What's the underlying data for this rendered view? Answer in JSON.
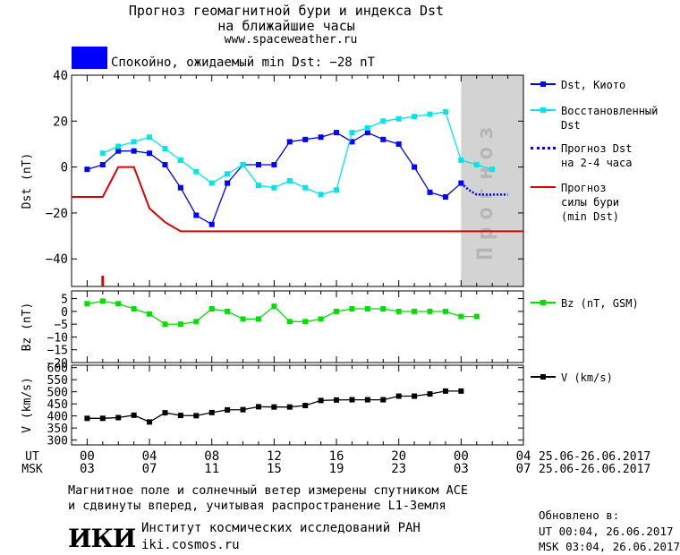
{
  "header": {
    "title_line1": "Прогноз геомагнитной бури и индекса Dst",
    "title_line2": "на ближайшие часы",
    "site": "www.spaceweather.ru"
  },
  "status": {
    "text": "Спокойно, ожидаемый min Dst: −28 nT",
    "color": "#0000ff"
  },
  "legend": {
    "dst_kyoto": "Dst, Киото",
    "dst_restored": "Восстановленный\nDst",
    "dst_forecast": "Прогноз Dst\nна 2-4 часа",
    "storm_forecast": "Прогноз\nсилы бури\n(min Dst)",
    "bz": "Bz (nT, GSM)",
    "v": "V (km/s)"
  },
  "chart_data": [
    {
      "type": "line",
      "ylabel": "Dst (nT)",
      "ylim": [
        -52,
        40
      ],
      "yticks": [
        40,
        20,
        0,
        -20,
        -40
      ],
      "x": [
        0,
        1,
        2,
        3,
        4,
        5,
        6,
        7,
        8,
        9,
        10,
        11,
        12,
        13,
        14,
        15,
        16,
        17,
        18,
        19,
        20,
        21,
        22,
        23,
        24,
        25
      ],
      "series": [
        {
          "name": "Dst, Киото",
          "color": "#0000ff",
          "points": [
            [
              0,
              -1
            ],
            [
              1,
              1
            ],
            [
              2,
              7
            ],
            [
              3,
              7
            ],
            [
              4,
              6
            ],
            [
              5,
              1
            ],
            [
              6,
              -9
            ],
            [
              7,
              -21
            ],
            [
              8,
              -25
            ],
            [
              9,
              -7
            ],
            [
              10,
              1
            ],
            [
              11,
              1
            ],
            [
              12,
              1
            ],
            [
              13,
              11
            ],
            [
              14,
              12
            ],
            [
              15,
              13
            ],
            [
              16,
              15
            ],
            [
              17,
              11
            ],
            [
              18,
              15
            ],
            [
              19,
              12
            ],
            [
              20,
              10
            ],
            [
              21,
              0
            ],
            [
              22,
              -11
            ],
            [
              23,
              -13
            ],
            [
              24,
              -7
            ]
          ]
        },
        {
          "name": "Восстановленный Dst",
          "color": "#00e5e5",
          "points": [
            [
              1,
              6
            ],
            [
              2,
              9
            ],
            [
              3,
              11
            ],
            [
              4,
              13
            ],
            [
              5,
              8
            ],
            [
              6,
              3
            ],
            [
              7,
              -2
            ],
            [
              8,
              -7
            ],
            [
              9,
              -3
            ],
            [
              10,
              1
            ],
            [
              11,
              -8
            ],
            [
              12,
              -9
            ],
            [
              13,
              -6
            ],
            [
              14,
              -9
            ],
            [
              15,
              -12
            ],
            [
              16,
              -10
            ],
            [
              17,
              15
            ],
            [
              18,
              17
            ],
            [
              19,
              20
            ],
            [
              20,
              21
            ],
            [
              21,
              22
            ],
            [
              22,
              23
            ],
            [
              23,
              24
            ],
            [
              24,
              3
            ],
            [
              25,
              1
            ],
            [
              26,
              -1
            ]
          ]
        },
        {
          "name": "Прогноз Dst на 2-4 часа",
          "color": "#0000ff",
          "dashed": true,
          "points": [
            [
              24,
              -7
            ],
            [
              24.5,
              -10
            ],
            [
              25,
              -12
            ],
            [
              26,
              -12
            ],
            [
              27,
              -12
            ]
          ]
        },
        {
          "name": "Прогноз силы бури (min Dst)",
          "color": "#dd0000",
          "points": [
            [
              -1,
              -13
            ],
            [
              1,
              -13
            ],
            [
              2,
              0
            ],
            [
              3,
              0
            ],
            [
              4,
              -18
            ],
            [
              5,
              -24
            ],
            [
              6,
              -28
            ],
            [
              28,
              -28
            ]
          ]
        }
      ],
      "forecast_region": {
        "from": 24,
        "to": 28,
        "label": "Прогноз"
      },
      "marker_x": 1
    },
    {
      "type": "line",
      "ylabel": "Bz (nT)",
      "ylim": [
        -20,
        8
      ],
      "yticks": [
        5,
        0,
        -5,
        -10,
        -15,
        -20
      ],
      "series": [
        {
          "name": "Bz (nT, GSM)",
          "color": "#00e000",
          "points": [
            [
              0,
              3
            ],
            [
              1,
              4
            ],
            [
              2,
              3
            ],
            [
              3,
              1
            ],
            [
              4,
              -1
            ],
            [
              5,
              -5
            ],
            [
              6,
              -5
            ],
            [
              7,
              -4
            ],
            [
              8,
              1
            ],
            [
              9,
              0
            ],
            [
              10,
              -3
            ],
            [
              11,
              -3
            ],
            [
              12,
              2
            ],
            [
              13,
              -4
            ],
            [
              14,
              -4
            ],
            [
              15,
              -3
            ],
            [
              16,
              0
            ],
            [
              17,
              1
            ],
            [
              18,
              1
            ],
            [
              19,
              1
            ],
            [
              20,
              0
            ],
            [
              21,
              0
            ],
            [
              22,
              0
            ],
            [
              23,
              0
            ],
            [
              24,
              -2
            ],
            [
              25,
              -2
            ]
          ]
        }
      ]
    },
    {
      "type": "line",
      "ylabel": "V (km/s)",
      "ylim": [
        280,
        610
      ],
      "yticks": [
        600,
        550,
        500,
        450,
        400,
        350,
        300
      ],
      "series": [
        {
          "name": "V (km/s)",
          "color": "#000000",
          "points": [
            [
              0,
              390
            ],
            [
              1,
              390
            ],
            [
              2,
              393
            ],
            [
              3,
              403
            ],
            [
              4,
              375
            ],
            [
              5,
              413
            ],
            [
              6,
              402
            ],
            [
              7,
              401
            ],
            [
              8,
              414
            ],
            [
              9,
              425
            ],
            [
              10,
              426
            ],
            [
              11,
              438
            ],
            [
              12,
              437
            ],
            [
              13,
              437
            ],
            [
              14,
              443
            ],
            [
              15,
              464
            ],
            [
              16,
              466
            ],
            [
              17,
              467
            ],
            [
              18,
              467
            ],
            [
              19,
              467
            ],
            [
              20,
              482
            ],
            [
              21,
              482
            ],
            [
              22,
              491
            ],
            [
              23,
              503
            ],
            [
              24,
              503
            ]
          ]
        }
      ]
    }
  ],
  "xaxis": {
    "ut_label": "UT",
    "msk_label": "MSK",
    "ut_ticks": [
      "00",
      "04",
      "08",
      "12",
      "16",
      "20",
      "00",
      "04"
    ],
    "msk_ticks": [
      "03",
      "07",
      "11",
      "15",
      "19",
      "23",
      "03",
      "07"
    ],
    "date_range_ut": "25.06-26.06.2017",
    "date_range_msk": "25.06-26.06.2017"
  },
  "footer": {
    "line1": "Магнитное поле и солнечный ветер измерены спутником ACE",
    "line2": "и сдвинуты вперед, учитывая распространение L1-Земля",
    "logo": "ИКИ",
    "institute": "Институт космических исследований РАН",
    "institute_url": "iki.cosmos.ru",
    "updated_title": "Обновлено в:",
    "updated_ut": "UT  00:04, 26.06.2017",
    "updated_msk": "MSK 03:04, 26.06.2017"
  }
}
